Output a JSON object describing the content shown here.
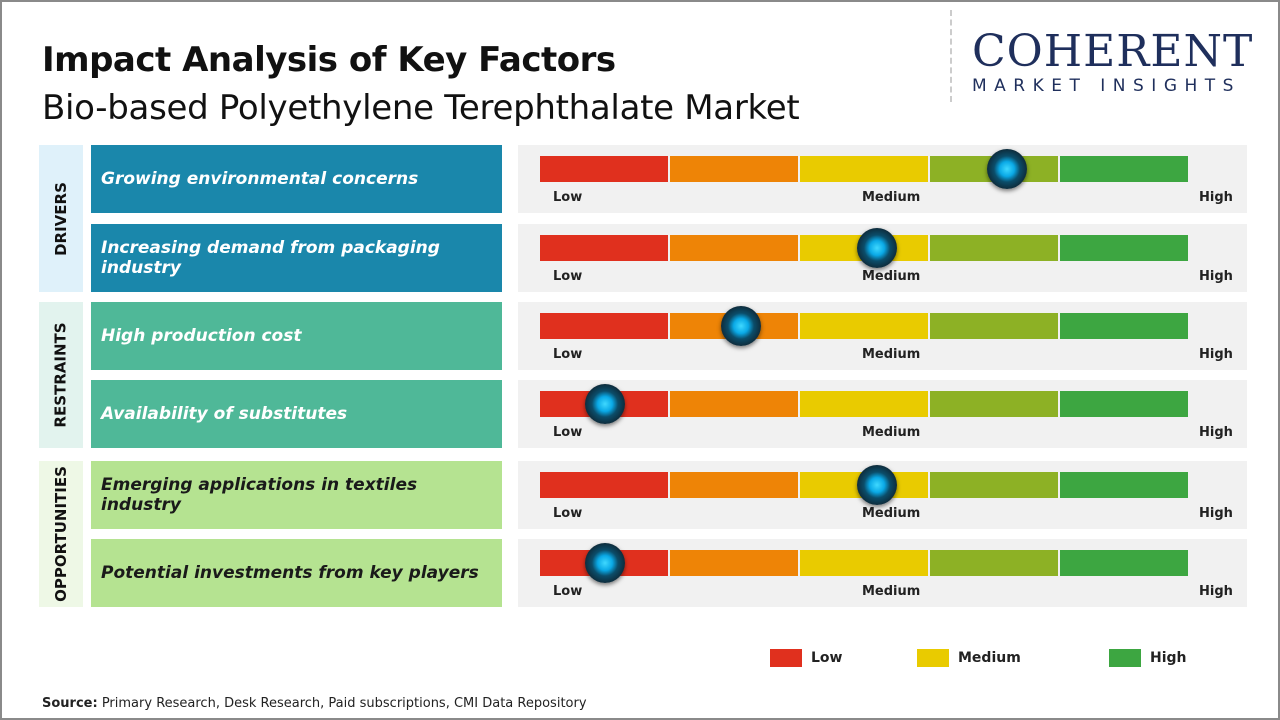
{
  "title": "Impact Analysis of Key Factors",
  "subtitle": "Bio-based Polyethylene Terephthalate Market",
  "logo": {
    "main": "COHERENT",
    "sub": "MARKET INSIGHTS"
  },
  "colors": {
    "drivers": "#1a87ab",
    "restraints": "#4fb898",
    "opportunities": "#b5e391",
    "low": "#e0301e",
    "low_mid": "#ee8406",
    "medium": "#e9cb00",
    "mid_high": "#8db125",
    "high": "#3da641"
  },
  "categories": [
    {
      "label": "DRIVERS",
      "bg": "#dff1fa"
    },
    {
      "label": "RESTRAINTS",
      "bg": "#e2f3ee"
    },
    {
      "label": "OPPORTUNITIES",
      "bg": "#eef8e6"
    }
  ],
  "chart_data": {
    "type": "gauge",
    "scale": [
      "Low",
      "Medium",
      "High"
    ],
    "factors": [
      {
        "category": "DRIVERS",
        "label": "Growing environmental concerns",
        "level": 0.72
      },
      {
        "category": "DRIVERS",
        "label": "Increasing demand from packaging industry",
        "level": 0.52
      },
      {
        "category": "RESTRAINTS",
        "label": "High production cost",
        "level": 0.31
      },
      {
        "category": "RESTRAINTS",
        "label": "Availability of substitutes",
        "level": 0.1
      },
      {
        "category": "OPPORTUNITIES",
        "label": "Emerging applications in textiles industry",
        "level": 0.52
      },
      {
        "category": "OPPORTUNITIES",
        "label": "Potential investments from key players",
        "level": 0.1
      }
    ],
    "legend": [
      {
        "label": "Low",
        "color": "#e0301e"
      },
      {
        "label": "Medium",
        "color": "#e9cb00"
      },
      {
        "label": "High",
        "color": "#3da641"
      }
    ]
  },
  "source": {
    "label": "Source:",
    "text": " Primary Research, Desk Research, Paid subscriptions, CMI Data Repository"
  }
}
